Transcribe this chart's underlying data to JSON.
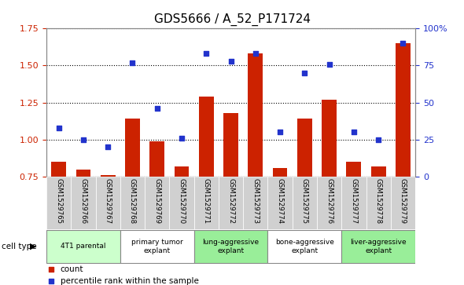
{
  "title": "GDS5666 / A_52_P171724",
  "samples": [
    "GSM1529765",
    "GSM1529766",
    "GSM1529767",
    "GSM1529768",
    "GSM1529769",
    "GSM1529770",
    "GSM1529771",
    "GSM1529772",
    "GSM1529773",
    "GSM1529774",
    "GSM1529775",
    "GSM1529776",
    "GSM1529777",
    "GSM1529778",
    "GSM1529779"
  ],
  "bar_values": [
    0.85,
    0.8,
    0.76,
    1.14,
    0.99,
    0.82,
    1.29,
    1.18,
    1.58,
    0.81,
    1.14,
    1.27,
    0.85,
    0.82,
    1.65
  ],
  "dot_values": [
    33,
    25,
    20,
    77,
    46,
    26,
    83,
    78,
    83,
    30,
    70,
    76,
    30,
    25,
    90
  ],
  "bar_color": "#cc2200",
  "dot_color": "#2233cc",
  "ylim_left": [
    0.75,
    1.75
  ],
  "ylim_right": [
    0,
    100
  ],
  "yticks_left": [
    0.75,
    1.0,
    1.25,
    1.5,
    1.75
  ],
  "yticks_right": [
    0,
    25,
    50,
    75,
    100
  ],
  "yticklabels_right": [
    "0",
    "25",
    "50",
    "75",
    "100%"
  ],
  "cell_types": [
    {
      "label": "4T1 parental",
      "start": 0,
      "end": 3,
      "color": "#ccffcc"
    },
    {
      "label": "primary tumor\nexplant",
      "start": 3,
      "end": 6,
      "color": "#ffffff"
    },
    {
      "label": "lung-aggressive\nexplant",
      "start": 6,
      "end": 9,
      "color": "#99ee99"
    },
    {
      "label": "bone-aggressive\nexplant",
      "start": 9,
      "end": 12,
      "color": "#ffffff"
    },
    {
      "label": "liver-aggressive\nexplant",
      "start": 12,
      "end": 15,
      "color": "#99ee99"
    }
  ],
  "legend_bar_label": "count",
  "legend_dot_label": "percentile rank within the sample",
  "cell_type_label": "cell type",
  "tick_label_color_left": "#cc2200",
  "tick_label_color_right": "#2233cc",
  "title_fontsize": 11,
  "bar_width": 0.6,
  "sample_bg_color": "#d0d0d0",
  "sample_border_color": "#ffffff",
  "cell_type_border_color": "#888888"
}
